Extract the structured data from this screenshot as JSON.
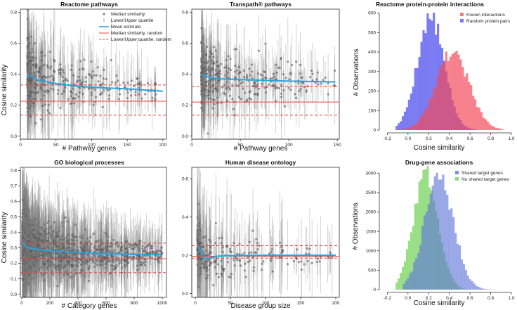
{
  "chart_data": [
    {
      "id": "p1",
      "type": "scatter",
      "title": "Reactome pathways",
      "xlabel": "# Pathway genes",
      "ylabel": "Cosine similarity",
      "xlim": [
        0,
        205
      ],
      "ylim": [
        -0.02,
        0.82
      ],
      "xticks": [
        0,
        50,
        100,
        150,
        200
      ],
      "yticks": [
        0.0,
        0.2,
        0.4,
        0.6,
        0.8
      ],
      "legend": {
        "position": "top-right",
        "entries": [
          {
            "label": "Median similarity",
            "style": "point",
            "color": "#888888"
          },
          {
            "label": "Lower/Upper quartile",
            "style": "vline",
            "color": "#aaaaaa"
          },
          {
            "label": "Mean estimate",
            "style": "line",
            "color": "#29a3dc"
          },
          {
            "label": "Median similarity, random",
            "style": "line",
            "color": "#e8413c"
          },
          {
            "label": "Lower/Upper quartile, random",
            "style": "dashed",
            "color": "#e8413c"
          }
        ]
      },
      "mean_curve": {
        "x": [
          10,
          15,
          20,
          30,
          50,
          75,
          100,
          150,
          200
        ],
        "y": [
          0.4,
          0.385,
          0.37,
          0.355,
          0.34,
          0.325,
          0.315,
          0.305,
          0.29
        ]
      },
      "random_median": 0.225,
      "random_lower": 0.135,
      "random_upper": 0.33,
      "points": {
        "x_min": 10,
        "x_max": 190,
        "center": 0.37,
        "spread": 0.09,
        "count": 420,
        "density": "decay",
        "seed": 11
      }
    },
    {
      "id": "p2",
      "type": "scatter",
      "title": "Transpath® pathways",
      "xlabel": "# Pathway genes",
      "ylabel": "",
      "xlim": [
        0,
        152
      ],
      "ylim": [
        -0.02,
        0.82
      ],
      "xticks": [
        0,
        50,
        100,
        150
      ],
      "yticks": [
        0.0,
        0.2,
        0.4,
        0.6,
        0.8
      ],
      "mean_curve": {
        "x": [
          10,
          15,
          20,
          30,
          50,
          75,
          100,
          148
        ],
        "y": [
          0.4,
          0.385,
          0.375,
          0.37,
          0.365,
          0.36,
          0.355,
          0.35
        ]
      },
      "random_median": 0.22,
      "random_lower": 0.135,
      "random_upper": 0.32,
      "points": {
        "x_min": 10,
        "x_max": 148,
        "center": 0.37,
        "spread": 0.08,
        "count": 380,
        "density": "decay",
        "seed": 23
      }
    },
    {
      "id": "p3",
      "type": "histogram",
      "title": "Reactome protein-protein interactions",
      "xlabel": "Cosine similarity",
      "ylabel": "# Observations",
      "xlim": [
        -0.25,
        1.0
      ],
      "ylim": [
        0,
        620
      ],
      "xticks": [
        -0.2,
        0.0,
        0.2,
        0.4,
        0.6,
        0.8,
        1.0
      ],
      "yticks": [
        0,
        100,
        200,
        300,
        400,
        500,
        600
      ],
      "bin_width": 0.02,
      "legend": {
        "position": "top-right",
        "entries": [
          {
            "label": "Known interactions",
            "color": "#f08080"
          },
          {
            "label": "Random protein pairs",
            "color": "#7b7bf0"
          }
        ]
      },
      "series": [
        {
          "name": "Random protein pairs",
          "mean": 0.22,
          "sd": 0.13,
          "peak": 575,
          "lo": -0.12,
          "hi": 0.65,
          "color": "#5c5cf0",
          "opacity": 0.8,
          "seed": 5
        },
        {
          "name": "Known interactions",
          "mean": 0.43,
          "sd": 0.16,
          "peak": 400,
          "lo": -0.1,
          "hi": 0.92,
          "color": "#f24a5a",
          "opacity": 0.68,
          "seed": 9
        }
      ]
    },
    {
      "id": "p4",
      "type": "scatter",
      "title": "GO biological processes",
      "xlabel": "# Category genes",
      "ylabel": "Cosine similarity",
      "xlim": [
        -10,
        1030
      ],
      "ylim": [
        -0.02,
        0.82
      ],
      "xticks": [
        0,
        200,
        400,
        600,
        800,
        1000
      ],
      "yticks": [
        0.0,
        0.1,
        0.2,
        0.3,
        0.4,
        0.5,
        0.6,
        0.7,
        0.8
      ],
      "mean_curve": {
        "x": [
          5,
          20,
          50,
          100,
          200,
          400,
          600,
          800,
          1000
        ],
        "y": [
          0.335,
          0.315,
          0.3,
          0.29,
          0.28,
          0.27,
          0.262,
          0.258,
          0.255
        ]
      },
      "random_median": 0.23,
      "random_lower": 0.14,
      "random_upper": 0.33,
      "points": {
        "x_min": 5,
        "x_max": 1000,
        "center": 0.28,
        "spread": 0.07,
        "count": 1600,
        "density": "decay",
        "seed": 37
      }
    },
    {
      "id": "p5",
      "type": "scatter",
      "title": "Human disease ontology",
      "xlabel": "Disease group size",
      "ylabel": "",
      "xlim": [
        -5,
        205
      ],
      "ylim": [
        -0.02,
        0.66
      ],
      "xticks": [
        0,
        50,
        100,
        150,
        200
      ],
      "yticks": [
        0.0,
        0.2,
        0.4,
        0.6
      ],
      "mean_curve": {
        "x": [
          3,
          8,
          12,
          20,
          30,
          50,
          100,
          150,
          200
        ],
        "y": [
          0.25,
          0.22,
          0.18,
          0.185,
          0.195,
          0.198,
          0.2,
          0.2,
          0.2
        ]
      },
      "random_median": 0.195,
      "random_lower": 0.185,
      "random_upper": 0.25,
      "points": {
        "x_min": 3,
        "x_max": 195,
        "center": 0.2,
        "spread": 0.05,
        "count": 260,
        "density": "decay",
        "seed": 51
      }
    },
    {
      "id": "p6",
      "type": "histogram",
      "title": "Drug-gene associations",
      "xlabel": "Cosine similarity",
      "ylabel": "# Observations",
      "xlim": [
        -0.25,
        1.0
      ],
      "ylim": [
        0,
        3150
      ],
      "xticks": [
        -0.2,
        0.0,
        0.2,
        0.4,
        0.6,
        0.8,
        1.0
      ],
      "yticks": [
        0,
        500,
        1000,
        1500,
        2000,
        2500,
        3000
      ],
      "bin_width": 0.02,
      "legend": {
        "position": "top-right",
        "entries": [
          {
            "label": "Shared target genes",
            "color": "#7b8fe0"
          },
          {
            "label": "No shared target genes",
            "color": "#8fdc7a"
          }
        ]
      },
      "series": [
        {
          "name": "No shared target genes",
          "mean": 0.17,
          "sd": 0.12,
          "peak": 2980,
          "lo": -0.12,
          "hi": 0.6,
          "color": "#8fdc7a",
          "opacity": 0.9,
          "seed": 3
        },
        {
          "name": "Shared target genes",
          "mean": 0.3,
          "sd": 0.14,
          "peak": 2880,
          "lo": -0.05,
          "hi": 0.88,
          "color": "#6076d8",
          "opacity": 0.62,
          "seed": 7
        }
      ]
    }
  ]
}
